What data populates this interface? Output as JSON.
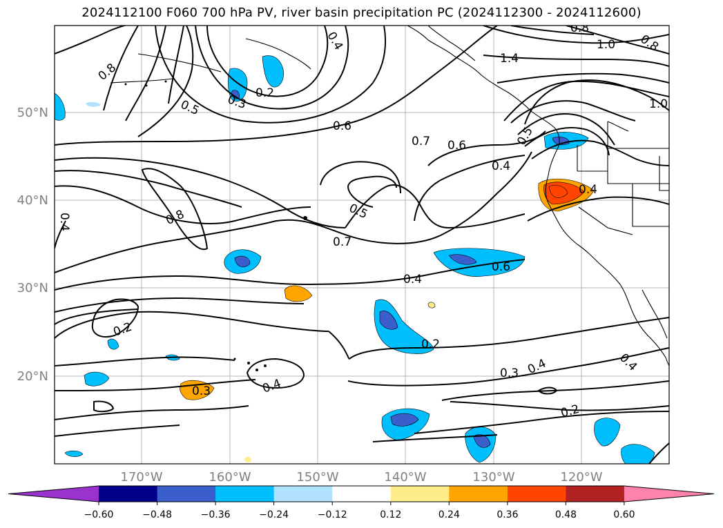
{
  "title": "2024112100 F060 700 hPa PV, river basin precipitation PC (2024112300 - 2024112600)",
  "lat_labels": [
    "50°N",
    "40°N",
    "30°N",
    "20°N"
  ],
  "lon_labels": [
    "170°W",
    "160°W",
    "150°W",
    "140°W",
    "130°W",
    "120°W"
  ],
  "colorbar": {
    "tick_labels": [
      "−0.60",
      "−0.48",
      "−0.36",
      "−0.24",
      "−0.12",
      "0.12",
      "0.24",
      "0.36",
      "0.48",
      "0.60"
    ],
    "colors": [
      "#9a32cd",
      "#00008b",
      "#3a5fcd",
      "#00bfff",
      "#b0e2ff",
      "#ffffff",
      "#ffec8b",
      "#ffa500",
      "#ff4500",
      "#b22222",
      "#ff82ab"
    ],
    "extend": "both"
  },
  "contour_labels": [
    "0.8",
    "0.5",
    "0.3",
    "0.2",
    "0.4",
    "0.6",
    "0.7",
    "0.6",
    "1.4",
    "0.8",
    "1.0",
    "0.8",
    "1.0",
    "0.5",
    "0.4",
    "0.4",
    "0.8",
    "0.4",
    "0.5",
    "0.7",
    "0.4",
    "0.6",
    "0.2",
    "0.2",
    "0.3",
    "0.4",
    "0.3",
    "0.4",
    "0.2",
    "0.4"
  ]
}
